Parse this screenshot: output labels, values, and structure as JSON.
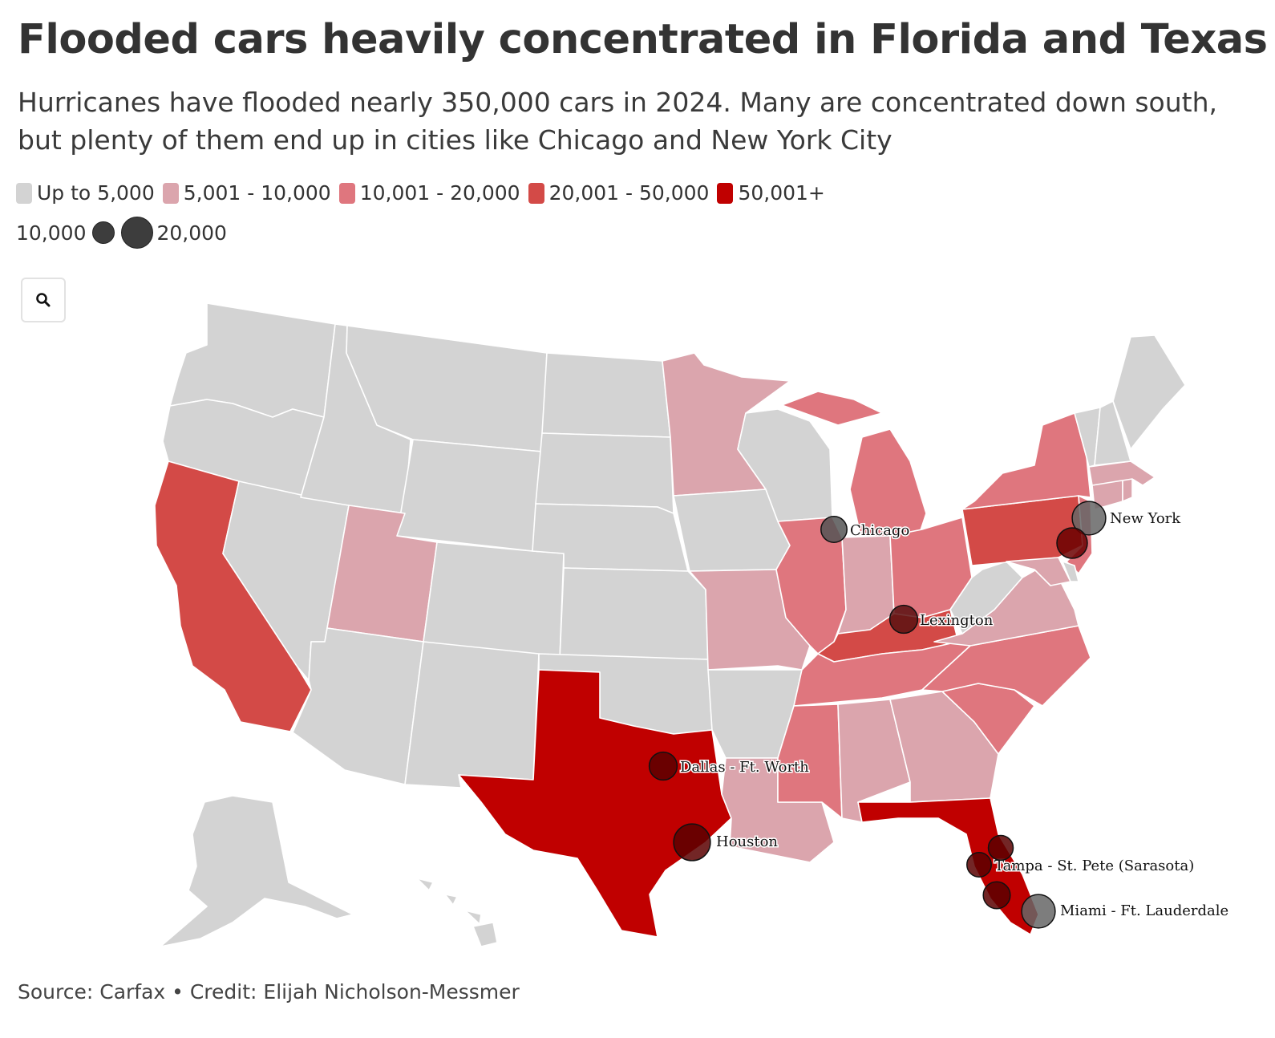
{
  "title": "Flooded cars heavily concentrated in Florida and Texas",
  "subtitle": "Hurricanes have flooded nearly 350,000 cars in 2024. Many are concentrated down south, but plenty of them end up in cities like Chicago and New York City",
  "legend": {
    "bins": [
      {
        "label": "Up to 5,000",
        "color": "#d3d3d3"
      },
      {
        "label": "5,001 - 10,000",
        "color": "#dba5ad"
      },
      {
        "label": "10,001 - 20,000",
        "color": "#df767e"
      },
      {
        "label": "20,001 - 50,000",
        "color": "#d34a47"
      },
      {
        "label": "50,001+",
        "color": "#c00000"
      }
    ],
    "size_small_label": "10,000",
    "size_large_label": "20,000"
  },
  "zoom_icon": "search-icon",
  "states": {
    "WA": "#d3d3d3",
    "OR": "#d3d3d3",
    "CA": "#d34a47",
    "NV": "#d3d3d3",
    "ID": "#d3d3d3",
    "MT": "#d3d3d3",
    "WY": "#d3d3d3",
    "UT": "#dba5ad",
    "AZ": "#d3d3d3",
    "CO": "#d3d3d3",
    "NM": "#d3d3d3",
    "ND": "#d3d3d3",
    "SD": "#d3d3d3",
    "NE": "#d3d3d3",
    "KS": "#d3d3d3",
    "OK": "#d3d3d3",
    "TX": "#c00000",
    "MN": "#dba5ad",
    "IA": "#d3d3d3",
    "MO": "#dba5ad",
    "AR": "#d3d3d3",
    "LA": "#dba5ad",
    "WI": "#d3d3d3",
    "IL": "#df767e",
    "MI": "#df767e",
    "IN": "#dba5ad",
    "OH": "#df767e",
    "KY": "#d34a47",
    "TN": "#df767e",
    "MS": "#df767e",
    "AL": "#dba5ad",
    "GA": "#dba5ad",
    "FL": "#c00000",
    "SC": "#df767e",
    "NC": "#df767e",
    "VA": "#dba5ad",
    "WV": "#d3d3d3",
    "PA": "#d34a47",
    "NY": "#df767e",
    "NJ": "#df767e",
    "MD": "#dba5ad",
    "DE": "#d3d3d3",
    "CT": "#dba5ad",
    "RI": "#dba5ad",
    "MA": "#dba5ad",
    "VT": "#d3d3d3",
    "NH": "#d3d3d3",
    "ME": "#d3d3d3",
    "AK": "#d3d3d3",
    "HI": "#d3d3d3"
  },
  "cities": [
    {
      "name": "Chicago",
      "label": "Chicago",
      "value": 7000,
      "fill": "#555555"
    },
    {
      "name": "New York",
      "label": "New York",
      "value": 16000,
      "fill": "#666666"
    },
    {
      "name": "Philadelphia",
      "label": "",
      "value": 12000,
      "fill": "#6b0000"
    },
    {
      "name": "Lexington",
      "label": "Lexington",
      "value": 9000,
      "fill": "#5a1010"
    },
    {
      "name": "Dallas - Ft. Worth",
      "label": "Dallas - Ft. Worth",
      "value": 9000,
      "fill": "#5a0000"
    },
    {
      "name": "Houston",
      "label": "Houston",
      "value": 21000,
      "fill": "#5a0000"
    },
    {
      "name": "Tampa - St. Pete (Sarasota)",
      "label": "Tampa - St. Pete (Sarasota)",
      "value": 5500,
      "fill": "#5a0000"
    },
    {
      "name": "Orlando",
      "label": "",
      "value": 6000,
      "fill": "#5a0000"
    },
    {
      "name": "Fort Myers",
      "label": "",
      "value": 8000,
      "fill": "#5a0000"
    },
    {
      "name": "Miami - Ft. Lauderdale",
      "label": "Miami - Ft. Lauderdale",
      "value": 16000,
      "fill": "#666666"
    }
  ],
  "source": "Source: Carfax • Credit: Elijah Nicholson-Messmer"
}
